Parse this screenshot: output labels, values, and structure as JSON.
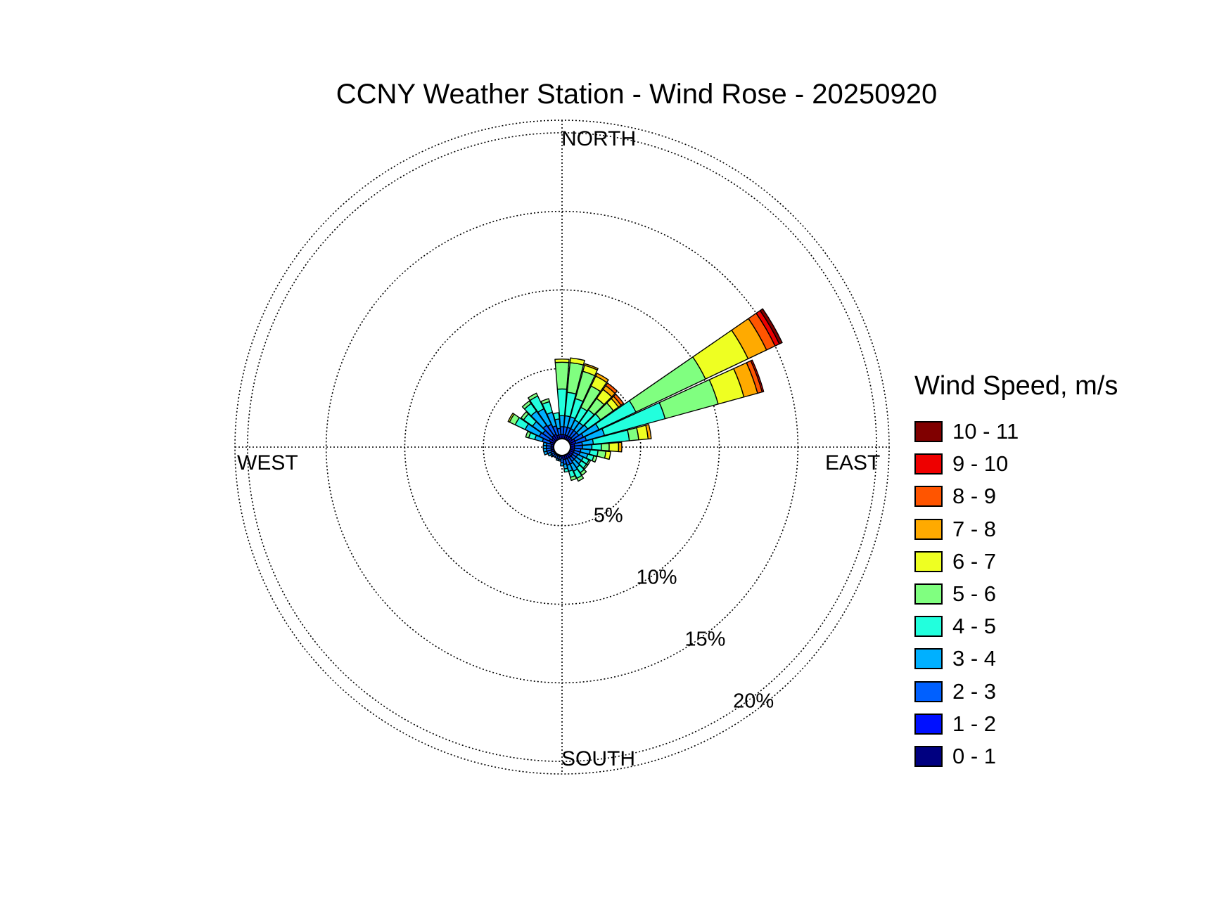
{
  "chart_data": {
    "type": "windrose",
    "title": "CCNY Weather Station - Wind Rose - 20250920",
    "direction_labels": {
      "north": "NORTH",
      "east": "EAST",
      "south": "SOUTH",
      "west": "WEST"
    },
    "radial_ticks": [
      5,
      10,
      15,
      20
    ],
    "radial_tick_labels": [
      "5%",
      "10%",
      "15%",
      "20%"
    ],
    "rmax_percent": 20.8,
    "grid": true,
    "legend": {
      "title": "Wind Speed, m/s",
      "placement": "right",
      "bins": [
        {
          "label": "10 - 11",
          "color": "#800000"
        },
        {
          "label": "9 - 10",
          "color": "#ee0000"
        },
        {
          "label": "8 - 9",
          "color": "#ff5500"
        },
        {
          "label": "7 - 8",
          "color": "#ffaa00"
        },
        {
          "label": "6 - 7",
          "color": "#eeff22"
        },
        {
          "label": "5 - 6",
          "color": "#80ff80"
        },
        {
          "label": "4 - 5",
          "color": "#22ffdd"
        },
        {
          "label": "3 - 4",
          "color": "#00b0ff"
        },
        {
          "label": "2 - 3",
          "color": "#0060ff"
        },
        {
          "label": "1 - 2",
          "color": "#0010ff"
        },
        {
          "label": "0 - 1",
          "color": "#000080"
        }
      ]
    },
    "sectors": [
      {
        "dir_deg": 0,
        "cumulative_percent": [
          0.4,
          0.8,
          1.3,
          2.0,
          3.7,
          5.4,
          5.6
        ]
      },
      {
        "dir_deg": 10,
        "cumulative_percent": [
          0.4,
          0.8,
          1.3,
          2.0,
          3.5,
          5.4,
          5.7
        ]
      },
      {
        "dir_deg": 20,
        "cumulative_percent": [
          0.4,
          0.8,
          1.3,
          2.0,
          3.2,
          5.0,
          5.4,
          5.5
        ]
      },
      {
        "dir_deg": 30,
        "cumulative_percent": [
          0.4,
          0.8,
          1.3,
          1.9,
          2.8,
          4.3,
          5.0,
          5.2
        ]
      },
      {
        "dir_deg": 40,
        "cumulative_percent": [
          0.4,
          0.8,
          1.3,
          1.9,
          2.9,
          3.8,
          4.5,
          4.8,
          5.0
        ]
      },
      {
        "dir_deg": 50,
        "cumulative_percent": [
          0.4,
          0.8,
          1.3,
          2.0,
          3.0,
          4.0,
          4.4,
          4.6,
          4.8
        ]
      },
      {
        "dir_deg": 60,
        "cumulative_percent": [
          0.4,
          0.9,
          1.5,
          2.6,
          5.2,
          10.1,
          13.1,
          14.4,
          15.0,
          15.3,
          15.5
        ]
      },
      {
        "dir_deg": 70,
        "cumulative_percent": [
          0.4,
          0.9,
          1.6,
          2.8,
          6.8,
          10.3,
          12.0,
          12.9,
          13.2,
          13.3
        ]
      },
      {
        "dir_deg": 80,
        "cumulative_percent": [
          0.4,
          0.8,
          1.3,
          2.0,
          4.3,
          4.9,
          5.5,
          5.7
        ]
      },
      {
        "dir_deg": 90,
        "cumulative_percent": [
          0.4,
          0.8,
          1.3,
          1.9,
          2.5,
          3.0,
          3.6,
          3.8
        ]
      },
      {
        "dir_deg": 100,
        "cumulative_percent": [
          0.4,
          0.8,
          1.2,
          1.8,
          2.3,
          2.8,
          3.1
        ]
      },
      {
        "dir_deg": 110,
        "cumulative_percent": [
          0.4,
          0.8,
          1.2,
          1.7,
          2.1,
          2.3
        ]
      },
      {
        "dir_deg": 120,
        "cumulative_percent": [
          0.4,
          0.8,
          1.1,
          1.5,
          1.9,
          2.0
        ]
      },
      {
        "dir_deg": 130,
        "cumulative_percent": [
          0.4,
          0.8,
          1.1,
          1.5,
          1.9,
          2.0
        ]
      },
      {
        "dir_deg": 140,
        "cumulative_percent": [
          0.4,
          0.8,
          1.1,
          1.6,
          2.0,
          2.2
        ]
      },
      {
        "dir_deg": 150,
        "cumulative_percent": [
          0.4,
          0.8,
          1.2,
          1.7,
          2.2,
          2.4
        ]
      },
      {
        "dir_deg": 160,
        "cumulative_percent": [
          0.4,
          0.8,
          1.2,
          1.6,
          2.0,
          2.2
        ]
      },
      {
        "dir_deg": 170,
        "cumulative_percent": [
          0.4,
          0.8,
          1.1,
          1.4,
          1.6
        ]
      },
      {
        "dir_deg": 180,
        "cumulative_percent": [
          0.4,
          0.7,
          1.0,
          1.2
        ]
      },
      {
        "dir_deg": 190,
        "cumulative_percent": [
          0.4,
          0.6,
          0.8,
          0.9
        ]
      },
      {
        "dir_deg": 200,
        "cumulative_percent": [
          0.4,
          0.6,
          0.8,
          0.9
        ]
      },
      {
        "dir_deg": 210,
        "cumulative_percent": [
          0.4,
          0.6,
          0.8
        ]
      },
      {
        "dir_deg": 220,
        "cumulative_percent": [
          0.4,
          0.6,
          0.8
        ]
      },
      {
        "dir_deg": 230,
        "cumulative_percent": [
          0.4,
          0.6,
          0.8,
          0.9
        ]
      },
      {
        "dir_deg": 240,
        "cumulative_percent": [
          0.4,
          0.6,
          0.8,
          1.0
        ]
      },
      {
        "dir_deg": 250,
        "cumulative_percent": [
          0.4,
          0.7,
          1.0,
          1.2
        ]
      },
      {
        "dir_deg": 260,
        "cumulative_percent": [
          0.4,
          0.7,
          1.0,
          1.2
        ]
      },
      {
        "dir_deg": 270,
        "cumulative_percent": [
          0.4,
          0.7,
          1.0,
          1.2
        ]
      },
      {
        "dir_deg": 280,
        "cumulative_percent": [
          0.4,
          0.7,
          1.0,
          1.2
        ]
      },
      {
        "dir_deg": 290,
        "cumulative_percent": [
          0.4,
          0.8,
          1.3,
          1.8,
          2.2,
          2.4
        ]
      },
      {
        "dir_deg": 300,
        "cumulative_percent": [
          0.4,
          0.9,
          1.6,
          2.6,
          3.3,
          3.7,
          3.8
        ]
      },
      {
        "dir_deg": 310,
        "cumulative_percent": [
          0.4,
          0.8,
          1.5,
          2.3,
          3.0,
          3.2
        ]
      },
      {
        "dir_deg": 320,
        "cumulative_percent": [
          0.4,
          0.9,
          1.7,
          2.8,
          3.4,
          3.6
        ]
      },
      {
        "dir_deg": 330,
        "cumulative_percent": [
          0.4,
          0.9,
          1.6,
          2.7,
          3.6,
          3.8
        ]
      },
      {
        "dir_deg": 340,
        "cumulative_percent": [
          0.4,
          0.8,
          1.4,
          2.3,
          3.0,
          3.2
        ]
      },
      {
        "dir_deg": 350,
        "cumulative_percent": [
          0.4,
          0.8,
          1.2,
          1.8,
          2.2
        ]
      }
    ]
  }
}
